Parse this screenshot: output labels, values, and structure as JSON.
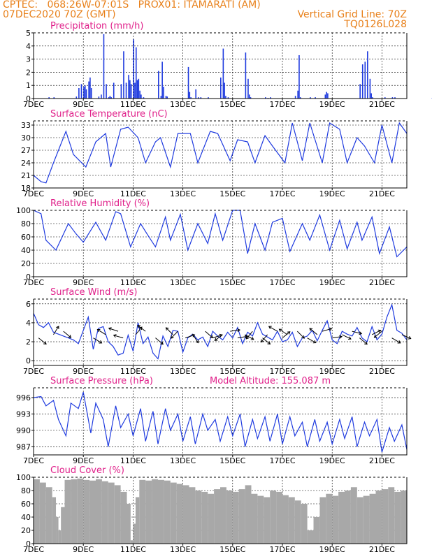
{
  "header": {
    "line1": "CPTEC:   068:26W-07:01S   PROX01: ITAMARATI (AM)",
    "line2": "07DEC2020 70Z (GMT)",
    "grid_note": "Vertical Grid Line: 70Z",
    "code": "TQ0126L028"
  },
  "model_altitude": "Model Altitude: 155.087 m",
  "colors": {
    "header": "#e8801a",
    "title": "#e0208a",
    "series": "#1e3adf",
    "cloud": "#a8a8a8"
  },
  "chart_data": [
    {
      "type": "bar",
      "title": "Precipitation  (mm/h)",
      "ylim": [
        0,
        5
      ],
      "yticks": [
        0,
        1,
        2,
        3,
        4,
        5
      ],
      "xticks": [
        "7DEC",
        "9DEC",
        "11DEC",
        "13DEC",
        "15DEC",
        "17DEC",
        "19DEC",
        "21DEC"
      ],
      "x": [
        0.6,
        0.8,
        1.7,
        1.8,
        1.9,
        2.0,
        2.05,
        2.1,
        2.2,
        2.25,
        2.3,
        2.6,
        2.7,
        2.8,
        2.9,
        3.0,
        3.05,
        3.1,
        3.2,
        3.5,
        3.6,
        3.7,
        3.8,
        3.85,
        3.9,
        4.0,
        4.05,
        4.1,
        4.15,
        4.2,
        4.25,
        4.3,
        4.4,
        5.0,
        5.1,
        5.15,
        5.2,
        5.3,
        5.35,
        6.2,
        6.25,
        6.3,
        6.5,
        6.6,
        6.7,
        7.0,
        7.5,
        7.6,
        7.65,
        7.7,
        7.8,
        8.5,
        8.6,
        8.65,
        8.7,
        9.3,
        9.4,
        9.5,
        10.5,
        10.6,
        10.65,
        10.7,
        11.1,
        11.3,
        11.7,
        11.75,
        11.8,
        13.1,
        13.2,
        13.3,
        13.4,
        13.5,
        13.55,
        13.6,
        14.1,
        14.4,
        14.5,
        16.0,
        16.1,
        16.8
      ],
      "values": [
        0.1,
        0.1,
        0.15,
        0.8,
        1.1,
        0.9,
        1.0,
        0.7,
        1.3,
        1.6,
        0.8,
        0.15,
        0.3,
        4.9,
        1.1,
        0.1,
        0.2,
        0.1,
        1.2,
        1.1,
        3.6,
        1.2,
        1.8,
        1.4,
        1.1,
        4.5,
        1.2,
        3.9,
        1.4,
        1.5,
        0.6,
        0.3,
        0.1,
        2.1,
        0.2,
        2.8,
        0.9,
        0.2,
        0.15,
        2.4,
        0.5,
        0.1,
        0.7,
        0.1,
        0.1,
        0.1,
        1.6,
        3.8,
        1.2,
        0.2,
        0.1,
        3.5,
        1.5,
        0.3,
        0.1,
        0.1,
        0.05,
        0.1,
        0.2,
        0.6,
        3.3,
        0.1,
        0.1,
        0.1,
        0.3,
        0.5,
        0.4,
        1.1,
        2.6,
        2.8,
        3.6,
        1.5,
        0.4,
        0.1,
        0.1,
        0.1,
        0.1,
        0.05,
        0.5,
        0.1
      ]
    },
    {
      "type": "line",
      "title": "Surface Temperature  (nC)",
      "ylim": [
        18,
        34
      ],
      "yticks": [
        18,
        21,
        24,
        27,
        30,
        33
      ],
      "xticks": [
        "7DEC",
        "9DEC",
        "11DEC",
        "13DEC",
        "15DEC",
        "17DEC",
        "19DEC",
        "21DEC"
      ],
      "x": [
        0,
        0.3,
        0.5,
        0.8,
        1.3,
        1.6,
        2.1,
        2.5,
        2.9,
        3.1,
        3.5,
        3.8,
        4.2,
        4.5,
        4.9,
        5.1,
        5.5,
        5.8,
        6.3,
        6.6,
        7.1,
        7.4,
        7.9,
        8.2,
        8.6,
        8.9,
        9.3,
        9.6,
        10.1,
        10.4,
        10.8,
        11.1,
        11.6,
        11.9,
        12.3,
        12.6,
        13.0,
        13.3,
        13.7,
        14.0,
        14.4,
        14.7,
        15.0
      ],
      "values": [
        21,
        19.5,
        19.2,
        24,
        31.5,
        26,
        23,
        29,
        31,
        23,
        32,
        32.5,
        30,
        24,
        29,
        30,
        23,
        31,
        31,
        24,
        31.5,
        31,
        24.5,
        29.5,
        29,
        24,
        30.5,
        28,
        24,
        33.5,
        24.5,
        33.5,
        24,
        33.5,
        32,
        24,
        30,
        28,
        24,
        33,
        24,
        33.5,
        31
      ]
    },
    {
      "type": "line",
      "title": "Relative Humidity  (%)",
      "ylim": [
        0,
        100
      ],
      "yticks": [
        0,
        20,
        40,
        60,
        80,
        100
      ],
      "xticks": [
        "7DEC",
        "9DEC",
        "11DEC",
        "13DEC",
        "15DEC",
        "17DEC",
        "19DEC",
        "21DEC"
      ],
      "x": [
        0,
        0.3,
        0.5,
        0.9,
        1.4,
        1.7,
        2.0,
        2.5,
        2.9,
        3.3,
        3.5,
        3.9,
        4.3,
        4.6,
        4.9,
        5.3,
        5.5,
        5.9,
        6.2,
        6.6,
        7.0,
        7.3,
        7.6,
        8.0,
        8.3,
        8.6,
        8.9,
        9.3,
        9.6,
        10.0,
        10.3,
        10.8,
        11.1,
        11.5,
        11.9,
        12.3,
        12.6,
        13.0,
        13.2,
        13.6,
        13.9,
        14.3,
        14.6,
        15.0
      ],
      "values": [
        100,
        95,
        55,
        40,
        80,
        65,
        52,
        82,
        55,
        98,
        95,
        45,
        80,
        62,
        45,
        90,
        55,
        94,
        40,
        80,
        50,
        95,
        55,
        100,
        100,
        35,
        80,
        40,
        82,
        88,
        38,
        80,
        55,
        93,
        40,
        85,
        42,
        82,
        55,
        90,
        35,
        75,
        30,
        45
      ]
    },
    {
      "type": "line",
      "title": "Surface Wind  (m/s)",
      "ylim": [
        -0.5,
        6.5
      ],
      "yticks": [
        0,
        2,
        4,
        6
      ],
      "xticks": [
        "7DEC",
        "9DEC",
        "11DEC",
        "13DEC",
        "15DEC",
        "17DEC",
        "19DEC",
        "21DEC"
      ],
      "x": [
        0,
        0.2,
        0.4,
        0.6,
        0.8,
        1.0,
        1.2,
        1.4,
        1.6,
        1.8,
        2.0,
        2.2,
        2.4,
        2.6,
        2.8,
        3.0,
        3.2,
        3.4,
        3.6,
        3.8,
        4.0,
        4.2,
        4.4,
        4.6,
        4.8,
        5.0,
        5.2,
        5.4,
        5.6,
        5.8,
        6.0,
        6.2,
        6.4,
        6.6,
        6.8,
        7.0,
        7.2,
        7.4,
        7.6,
        7.8,
        8.0,
        8.2,
        8.4,
        8.6,
        8.8,
        9.0,
        9.2,
        9.4,
        9.6,
        9.8,
        10.0,
        10.2,
        10.4,
        10.6,
        10.8,
        11.0,
        11.2,
        11.4,
        11.6,
        11.8,
        12.0,
        12.2,
        12.4,
        12.6,
        12.8,
        13.0,
        13.2,
        13.4,
        13.6,
        13.8,
        14.0,
        14.2,
        14.4,
        14.6,
        14.8,
        15.0
      ],
      "values": [
        5,
        3.8,
        3.5,
        4.0,
        3.0,
        2.8,
        2.6,
        2.4,
        2.2,
        1.8,
        3.2,
        4.6,
        1.2,
        3.4,
        3.6,
        2.0,
        1.5,
        0.6,
        0.8,
        2.7,
        1.0,
        4.0,
        1.8,
        2.5,
        0.8,
        0.2,
        2.6,
        1.5,
        3.2,
        3.1,
        0.9,
        2.4,
        2.8,
        2.2,
        2.5,
        1.5,
        3.1,
        2.6,
        2.2,
        3.0,
        2.4,
        3.5,
        1.8,
        3.0,
        2.6,
        4.0,
        2.8,
        2.5,
        2.2,
        3.1,
        2.0,
        2.2,
        3.0,
        1.5,
        2.4,
        2.6,
        3.2,
        2.1,
        3.2,
        4.2,
        2.2,
        1.8,
        3.1,
        2.8,
        2.6,
        3.5,
        2.4,
        2.0,
        3.6,
        2.2,
        2.8,
        4.6,
        5.9,
        3.2,
        2.9,
        2.2
      ],
      "vectors": {
        "x": [
          0.2,
          0.8,
          1.2,
          2.4,
          2.9,
          3.4,
          3.6,
          4.1,
          4.5,
          4.9,
          5.6,
          5.8,
          6.1,
          6.4,
          6.9,
          7.2,
          7.6,
          7.9,
          8.2,
          8.5,
          8.8,
          9.2,
          9.4,
          9.8,
          10.0,
          10.2,
          10.6,
          11.0,
          11.4,
          11.6,
          12.0,
          12.4,
          12.8,
          13.1,
          13.6,
          14.0,
          14.4,
          14.8
        ],
        "u": [
          1,
          0.5,
          0.6,
          1,
          -0.8,
          -0.9,
          -0.7,
          0.5,
          -0.8,
          0.6,
          -0.6,
          -0.5,
          0.3,
          0.2,
          0.8,
          0.6,
          -0.4,
          0.7,
          0.6,
          0.7,
          -0.5,
          1,
          -0.6,
          -0.7,
          0.6,
          -0.6,
          0.8,
          0.7,
          -0.6,
          0.7,
          0.7,
          0.6,
          0.8,
          0.6,
          0.8,
          -0.5,
          1,
          0.9
        ],
        "v": [
          -0.8,
          0.8,
          -0.5,
          -0.6,
          0.5,
          0.3,
          0.2,
          0.6,
          0.6,
          -0.5,
          0.6,
          -0.5,
          0.1,
          -0.3,
          -0.7,
          0.2,
          -0.3,
          0.1,
          0.1,
          -0.4,
          -0.6,
          -0.8,
          -0.7,
          0.4,
          0.5,
          0.4,
          -0.8,
          -0.4,
          0.5,
          0.2,
          0.1,
          -0.3,
          -0.2,
          -0.5,
          0.4,
          -0.4,
          -0.6,
          -0.4
        ]
      }
    },
    {
      "type": "line",
      "title": "Surface Pressure  (hPa)",
      "ylim": [
        985.5,
        997.8
      ],
      "yticks": [
        987,
        990,
        993,
        996
      ],
      "xticks": [
        "7DEC",
        "9DEC",
        "11DEC",
        "13DEC",
        "15DEC",
        "17DEC",
        "19DEC",
        "21DEC"
      ],
      "x": [
        0,
        0.3,
        0.5,
        0.8,
        1.0,
        1.3,
        1.5,
        1.8,
        2.0,
        2.3,
        2.5,
        2.8,
        3.0,
        3.3,
        3.5,
        3.8,
        4.0,
        4.3,
        4.5,
        4.8,
        5.0,
        5.3,
        5.5,
        5.8,
        6.0,
        6.3,
        6.5,
        6.8,
        7.0,
        7.3,
        7.5,
        7.8,
        8.0,
        8.3,
        8.5,
        8.8,
        9.0,
        9.3,
        9.5,
        9.8,
        10.0,
        10.3,
        10.5,
        10.8,
        11.0,
        11.3,
        11.5,
        11.8,
        12.0,
        12.3,
        12.5,
        12.8,
        13.0,
        13.3,
        13.5,
        13.8,
        14.0,
        14.3,
        14.5,
        14.8,
        15.0
      ],
      "values": [
        996,
        996.2,
        994.5,
        995.5,
        992,
        989,
        995,
        994,
        997,
        989.5,
        995,
        992,
        987,
        994.5,
        990.5,
        993,
        989,
        994,
        988,
        993.5,
        987.5,
        994,
        990,
        993,
        988,
        992.5,
        987.5,
        993,
        990,
        992,
        988,
        992.5,
        989,
        993,
        987,
        992,
        988.5,
        992.5,
        988,
        993,
        987.5,
        992.5,
        989,
        991.5,
        987,
        992,
        988,
        991.5,
        987.5,
        992,
        988.5,
        992.5,
        987,
        991.5,
        989,
        992,
        986,
        990.5,
        988,
        991,
        986.5
      ]
    },
    {
      "type": "bar",
      "title": "Cloud Cover  (%)",
      "ylim": [
        0,
        100
      ],
      "yticks": [
        0,
        20,
        40,
        60,
        80,
        100
      ],
      "xticks": [
        "7DEC",
        "9DEC",
        "11DEC",
        "13DEC",
        "15DEC",
        "17DEC",
        "19DEC",
        "21DEC"
      ],
      "x": [
        0,
        0.25,
        0.5,
        0.75,
        0.9,
        1.0,
        1.1,
        1.25,
        1.5,
        1.75,
        2.0,
        2.25,
        2.5,
        2.75,
        3.0,
        3.25,
        3.5,
        3.75,
        3.9,
        4.0,
        4.1,
        4.25,
        4.5,
        4.75,
        5.0,
        5.25,
        5.5,
        5.75,
        6.0,
        6.25,
        6.5,
        6.75,
        7.0,
        7.25,
        7.5,
        7.75,
        8.0,
        8.25,
        8.5,
        8.75,
        9.0,
        9.25,
        9.5,
        9.75,
        10.0,
        10.25,
        10.5,
        10.75,
        11.0,
        11.25,
        11.5,
        11.75,
        12.0,
        12.25,
        12.5,
        12.75,
        13.0,
        13.25,
        13.5,
        13.75,
        14.0,
        14.25,
        14.5,
        14.75
      ],
      "values": [
        97,
        92,
        85,
        70,
        40,
        20,
        55,
        96,
        97,
        98,
        96,
        95,
        97,
        94,
        92,
        88,
        78,
        60,
        5,
        30,
        70,
        96,
        95,
        97,
        96,
        95,
        92,
        90,
        88,
        85,
        80,
        78,
        75,
        82,
        85,
        80,
        78,
        82,
        88,
        75,
        72,
        70,
        80,
        78,
        73,
        70,
        65,
        60,
        20,
        40,
        70,
        75,
        72,
        78,
        80,
        85,
        70,
        72,
        75,
        80,
        82,
        85,
        78,
        80
      ]
    }
  ],
  "altitude_note_label": ""
}
